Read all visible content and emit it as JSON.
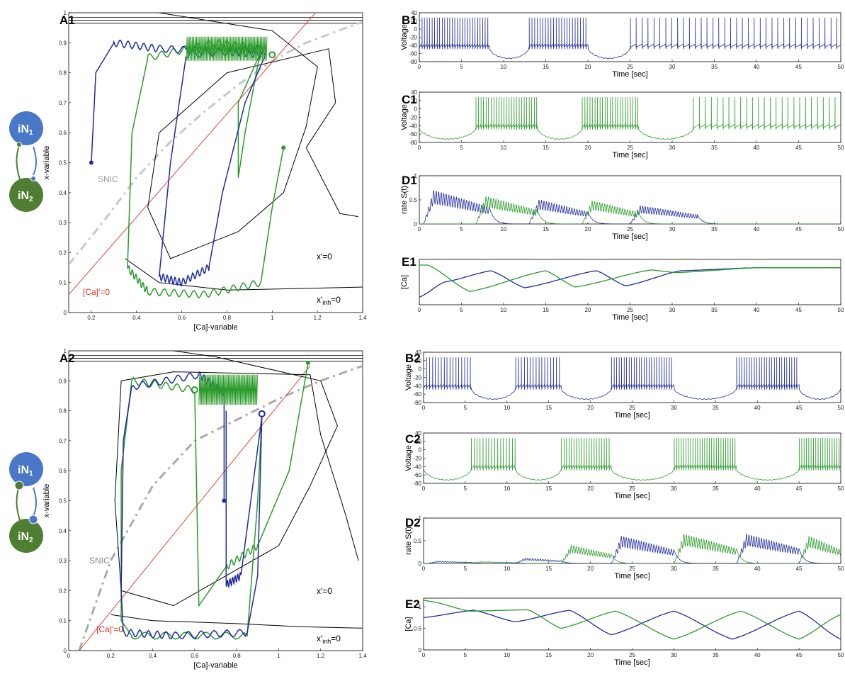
{
  "colors": {
    "iN1": "#1f2b9e",
    "iN2": "#2a9a2a",
    "iN1_node": "#4a78c8",
    "iN2_node": "#4f7d32",
    "red": "#e0301e",
    "snic": "#c8c8c8",
    "snic2": "#aaaaaa",
    "black": "#000000"
  },
  "diagrams": [
    {
      "label_n1": "iN",
      "sub_n1": "1",
      "label_n2": "iN",
      "sub_n2": "2"
    },
    {
      "label_n1": "iN",
      "sub_n1": "1",
      "label_n2": "iN",
      "sub_n2": "2"
    }
  ],
  "chart_data": [
    {
      "id": "A1",
      "type": "line",
      "panel_label": "A1",
      "xlabel": "[Ca]-variable",
      "ylabel": "x-variable",
      "xlim": [
        0.1,
        1.4
      ],
      "ylim": [
        0,
        1.0
      ],
      "xticks": [
        "0.2",
        "0.4",
        "0.6",
        "0.8",
        "1",
        "1.2",
        "1.4"
      ],
      "yticks": [
        "0",
        "0.1",
        "0.2",
        "0.3",
        "0.4",
        "0.5",
        "0.6",
        "0.7",
        "0.8",
        "0.9",
        "1"
      ],
      "annotations": [
        "SNIC",
        "x′=0",
        "x′",
        "inh",
        "=0",
        "[Ca]′=0"
      ],
      "red_nullcline": [
        [
          0.1,
          0.06
        ],
        [
          1.4,
          1.18
        ]
      ],
      "snic": [
        [
          0.1,
          0.16
        ],
        [
          0.25,
          0.3
        ],
        [
          0.4,
          0.45
        ],
        [
          0.55,
          0.57
        ],
        [
          0.7,
          0.67
        ],
        [
          0.85,
          0.76
        ],
        [
          1.0,
          0.84
        ],
        [
          1.15,
          0.9
        ],
        [
          1.4,
          0.97
        ]
      ],
      "x_nullcline": [
        [
          0.2,
          1.02
        ],
        [
          0.5,
          1.0
        ],
        [
          1.0,
          0.94
        ],
        [
          1.2,
          0.82
        ],
        [
          1.15,
          0.62
        ],
        [
          1.05,
          0.4
        ],
        [
          0.85,
          0.27
        ],
        [
          0.55,
          0.18
        ],
        [
          0.45,
          0.35
        ],
        [
          0.5,
          0.6
        ],
        [
          0.8,
          0.8
        ],
        [
          1.25,
          0.88
        ],
        [
          1.28,
          0.7
        ],
        [
          1.15,
          0.55
        ],
        [
          1.3,
          0.33
        ],
        [
          1.38,
          0.32
        ]
      ],
      "xinh_nullcline": [
        [
          0.35,
          0.18
        ],
        [
          0.5,
          0.1
        ],
        [
          0.8,
          0.075
        ],
        [
          1.1,
          0.08
        ],
        [
          1.4,
          0.085
        ]
      ],
      "top_lines": [
        0.965,
        0.975,
        0.985
      ],
      "blue_traj": [
        [
          0.2,
          0.5
        ],
        [
          0.22,
          0.8
        ],
        [
          0.3,
          0.9
        ],
        [
          0.5,
          0.88
        ],
        [
          0.8,
          0.87
        ],
        [
          0.97,
          0.86
        ],
        [
          0.88,
          0.7
        ],
        [
          0.78,
          0.4
        ],
        [
          0.72,
          0.15
        ],
        [
          0.6,
          0.1
        ],
        [
          0.5,
          0.12
        ],
        [
          0.55,
          0.5
        ],
        [
          0.62,
          0.86
        ],
        [
          0.95,
          0.88
        ]
      ],
      "green_traj": [
        [
          1.05,
          0.55
        ],
        [
          1.0,
          0.35
        ],
        [
          0.95,
          0.1
        ],
        [
          0.7,
          0.06
        ],
        [
          0.45,
          0.07
        ],
        [
          0.36,
          0.15
        ],
        [
          0.38,
          0.6
        ],
        [
          0.45,
          0.85
        ],
        [
          0.75,
          0.9
        ],
        [
          0.95,
          0.88
        ],
        [
          0.88,
          0.6
        ],
        [
          0.85,
          0.45
        ],
        [
          0.85,
          0.7
        ],
        [
          0.95,
          0.87
        ]
      ],
      "blue_start": [
        0.2,
        0.5
      ],
      "green_start": [
        1.05,
        0.55
      ],
      "fixed_point": [
        1.0,
        0.86
      ]
    },
    {
      "id": "A2",
      "type": "line",
      "panel_label": "A2",
      "xlabel": "[Ca]-variable",
      "ylabel": "x-variable",
      "xlim": [
        0,
        1.4
      ],
      "ylim": [
        0,
        1.0
      ],
      "xticks": [
        "0",
        "0.2",
        "0.4",
        "0.6",
        "0.8",
        "1",
        "1.2",
        "1.4"
      ],
      "yticks": [
        "0",
        "0.1",
        "0.2",
        "0.3",
        "0.4",
        "0.5",
        "0.6",
        "0.7",
        "0.8",
        "0.9",
        "1"
      ],
      "annotations": [
        "SNIC",
        "x′=0",
        "x′",
        "inh",
        "=0",
        "[Ca]′=0"
      ],
      "red_nullcline": [
        [
          0.05,
          0.0
        ],
        [
          1.15,
          0.95
        ]
      ],
      "snic": [
        [
          0.05,
          0.0
        ],
        [
          0.2,
          0.3
        ],
        [
          0.4,
          0.55
        ],
        [
          0.6,
          0.7
        ],
        [
          0.8,
          0.77
        ],
        [
          1.0,
          0.84
        ],
        [
          1.2,
          0.9
        ],
        [
          1.4,
          0.95
        ]
      ],
      "x_nullcline": [
        [
          0.3,
          1.02
        ],
        [
          0.7,
          0.98
        ],
        [
          1.2,
          0.9
        ],
        [
          1.28,
          0.75
        ],
        [
          1.15,
          0.55
        ],
        [
          1.0,
          0.35
        ],
        [
          0.5,
          0.15
        ],
        [
          0.25,
          0.2
        ],
        [
          0.22,
          0.5
        ],
        [
          0.25,
          0.9
        ],
        [
          0.5,
          0.93
        ],
        [
          1.15,
          0.92
        ],
        [
          1.2,
          0.72
        ],
        [
          1.32,
          0.45
        ],
        [
          1.38,
          0.3
        ]
      ],
      "xinh_nullcline": [
        [
          0.2,
          0.12
        ],
        [
          0.4,
          0.1
        ],
        [
          0.8,
          0.09
        ],
        [
          1.1,
          0.08
        ],
        [
          1.4,
          0.075
        ]
      ],
      "top_lines": [
        0.965,
        0.975,
        0.985
      ],
      "blue_traj": [
        [
          0.74,
          0.5
        ],
        [
          0.74,
          0.86
        ],
        [
          0.62,
          0.92
        ],
        [
          0.3,
          0.88
        ],
        [
          0.26,
          0.7
        ],
        [
          0.25,
          0.2
        ],
        [
          0.26,
          0.06
        ],
        [
          0.5,
          0.05
        ],
        [
          0.85,
          0.06
        ],
        [
          0.9,
          0.25
        ],
        [
          0.92,
          0.78
        ],
        [
          0.82,
          0.25
        ],
        [
          0.75,
          0.22
        ],
        [
          0.75,
          0.8
        ]
      ],
      "green_traj": [
        [
          1.14,
          0.96
        ],
        [
          1.05,
          0.6
        ],
        [
          0.9,
          0.35
        ],
        [
          0.75,
          0.28
        ],
        [
          0.62,
          0.15
        ],
        [
          0.6,
          0.87
        ],
        [
          0.3,
          0.9
        ],
        [
          0.25,
          0.6
        ],
        [
          0.25,
          0.1
        ],
        [
          0.3,
          0.05
        ],
        [
          0.85,
          0.05
        ],
        [
          0.9,
          0.5
        ],
        [
          0.92,
          0.78
        ]
      ],
      "blue_start": [
        0.74,
        0.5
      ],
      "green_start": [
        1.14,
        0.96
      ],
      "fixed_point": [
        0.92,
        0.79
      ],
      "green_fixed": [
        0.6,
        0.87
      ]
    },
    {
      "id": "B1",
      "panel_label": "B1",
      "type": "line",
      "xlabel": "Time [sec]",
      "ylabel": "Voltage",
      "xlim": [
        0,
        50
      ],
      "ylim": [
        -80,
        40
      ],
      "xticks": [
        "0",
        "5",
        "10",
        "15",
        "20",
        "25",
        "30",
        "35",
        "40",
        "45",
        "50"
      ],
      "yticks": [
        "-80",
        "-60",
        "-40",
        "-20",
        "0",
        "20",
        "40"
      ],
      "series": [
        {
          "color": "iN1",
          "kind": "voltage",
          "bursts": [
            [
              0,
              8.3
            ],
            [
              13,
              20
            ],
            [
              25,
              50
            ]
          ],
          "period": [
            0.3,
            0.32,
            0.7
          ],
          "rest": -45,
          "spike": 28,
          "hyper": -72
        }
      ]
    },
    {
      "id": "C1",
      "panel_label": "C1",
      "type": "line",
      "xlabel": "Time [sec]",
      "ylabel": "Voltage",
      "xlim": [
        0,
        50
      ],
      "ylim": [
        -80,
        40
      ],
      "xticks": [
        "0",
        "5",
        "10",
        "15",
        "20",
        "25",
        "30",
        "35",
        "40",
        "45",
        "50"
      ],
      "yticks": [
        "-80",
        "-60",
        "-40",
        "-20",
        "0",
        "20",
        "40"
      ],
      "series": [
        {
          "color": "iN2",
          "kind": "voltage",
          "bursts": [
            [
              6.7,
              14
            ],
            [
              19.3,
              26
            ],
            [
              32.5,
              50
            ]
          ],
          "period": [
            0.3,
            0.3,
            0.7
          ],
          "rest": -45,
          "spike": 28,
          "hyper": -72
        }
      ]
    },
    {
      "id": "D1",
      "panel_label": "D1",
      "type": "line",
      "xlabel": "Time [sec]",
      "ylabel": "rate S(t)",
      "xlim": [
        0,
        50
      ],
      "ylim": [
        0,
        1
      ],
      "xticks": [
        "0",
        "5",
        "10",
        "15",
        "20",
        "25",
        "30",
        "35",
        "40",
        "45",
        "50"
      ],
      "yticks": [
        "0",
        "0.5",
        "1"
      ],
      "series": [
        {
          "color": "iN1",
          "kind": "rate",
          "bumps": [
            [
              0.5,
              8.3,
              0.7
            ],
            [
              13,
              20,
              0.5
            ],
            [
              25,
              33,
              0.38
            ]
          ]
        },
        {
          "color": "iN2",
          "kind": "rate",
          "bumps": [
            [
              6.7,
              14,
              0.57
            ],
            [
              19.3,
              26,
              0.48
            ]
          ]
        }
      ]
    },
    {
      "id": "E1",
      "panel_label": "E1",
      "type": "line",
      "xlabel": "Time [sec]",
      "ylabel": "[Ca]",
      "xlim": [
        0,
        50
      ],
      "ylim": [
        0,
        1.2
      ],
      "xticks": [
        "0",
        "5",
        "10",
        "15",
        "20",
        "25",
        "30",
        "35",
        "40",
        "45",
        "50"
      ],
      "yticks": [],
      "series": [
        {
          "color": "iN1",
          "kind": "ca",
          "pts": [
            [
              0,
              0.2
            ],
            [
              3,
              0.6
            ],
            [
              8.5,
              0.9
            ],
            [
              12.5,
              0.45
            ],
            [
              21,
              0.9
            ],
            [
              24.5,
              0.5
            ],
            [
              31,
              0.9
            ],
            [
              40,
              0.98
            ],
            [
              50,
              0.98
            ]
          ]
        },
        {
          "color": "iN2",
          "kind": "ca",
          "pts": [
            [
              0,
              1.05
            ],
            [
              1,
              1.05
            ],
            [
              6,
              0.35
            ],
            [
              15,
              0.9
            ],
            [
              18.5,
              0.47
            ],
            [
              27.5,
              0.92
            ],
            [
              30.5,
              0.85
            ],
            [
              40,
              0.98
            ],
            [
              50,
              0.98
            ]
          ]
        }
      ]
    },
    {
      "id": "B2",
      "panel_label": "B2",
      "type": "line",
      "xlabel": "Time [sec]",
      "ylabel": "Voltage",
      "xlim": [
        0,
        50
      ],
      "ylim": [
        -80,
        40
      ],
      "xticks": [
        "0",
        "5",
        "10",
        "15",
        "20",
        "25",
        "30",
        "35",
        "40",
        "45",
        "50"
      ],
      "yticks": [
        "-80",
        "-60",
        "-40",
        "-20",
        "0",
        "20",
        "40"
      ],
      "series": [
        {
          "color": "iN1",
          "kind": "voltage",
          "bursts": [
            [
              0,
              5.7
            ],
            [
              11,
              16.5
            ],
            [
              22.5,
              30
            ],
            [
              37.5,
              45
            ]
          ],
          "period": [
            0.35,
            0.35,
            0.3,
            0.3
          ],
          "rest": -45,
          "spike": 28,
          "hyper": -72
        }
      ]
    },
    {
      "id": "C2",
      "panel_label": "C2",
      "type": "line",
      "xlabel": "Time [sec]",
      "ylabel": "Voltage",
      "xlim": [
        0,
        50
      ],
      "ylim": [
        -80,
        40
      ],
      "xticks": [
        "0",
        "5",
        "10",
        "15",
        "20",
        "25",
        "30",
        "35",
        "40",
        "45",
        "50"
      ],
      "yticks": [
        "-80",
        "-60",
        "-40",
        "-20",
        "0",
        "20",
        "40"
      ],
      "series": [
        {
          "color": "iN2",
          "kind": "voltage",
          "bursts": [
            [
              5.7,
              11
            ],
            [
              16.5,
              22.5
            ],
            [
              30,
              37.5
            ],
            [
              45,
              50
            ]
          ],
          "period": [
            0.35,
            0.3,
            0.28,
            0.28
          ],
          "rest": -45,
          "spike": 28,
          "hyper": -72
        }
      ]
    },
    {
      "id": "D2",
      "panel_label": "D2",
      "type": "line",
      "xlabel": "Time [sec]",
      "ylabel": "rate S(t)",
      "xlim": [
        0,
        50
      ],
      "ylim": [
        0,
        1
      ],
      "xticks": [
        "0",
        "5",
        "10",
        "15",
        "20",
        "25",
        "30",
        "35",
        "40",
        "45",
        "50"
      ],
      "yticks": [
        "0",
        "0.5",
        "1"
      ],
      "series": [
        {
          "color": "iN1",
          "kind": "rate",
          "bumps": [
            [
              0.5,
              5.7,
              0.05
            ],
            [
              11,
              16.5,
              0.12
            ],
            [
              22.5,
              30,
              0.6
            ],
            [
              37.5,
              45,
              0.65
            ]
          ]
        },
        {
          "color": "iN2",
          "kind": "rate",
          "bumps": [
            [
              5.7,
              11,
              0.04
            ],
            [
              16.5,
              22.5,
              0.4
            ],
            [
              30,
              37.5,
              0.65
            ],
            [
              45,
              50,
              0.6
            ]
          ]
        }
      ]
    },
    {
      "id": "E2",
      "panel_label": "E2",
      "type": "line",
      "xlabel": "Time [sec]",
      "ylabel": "[Ca]",
      "xlim": [
        0,
        50
      ],
      "ylim": [
        0,
        1.2
      ],
      "xticks": [
        "0",
        "5",
        "10",
        "15",
        "20",
        "25",
        "30",
        "35",
        "40",
        "45",
        "50"
      ],
      "yticks": [
        "0",
        "0.5",
        "1"
      ],
      "series": [
        {
          "color": "iN1",
          "kind": "ca",
          "pts": [
            [
              0,
              0.75
            ],
            [
              6,
              0.92
            ],
            [
              11,
              0.65
            ],
            [
              17.5,
              0.92
            ],
            [
              22.5,
              0.35
            ],
            [
              30,
              0.9
            ],
            [
              37,
              0.25
            ],
            [
              45,
              0.9
            ],
            [
              50,
              0.25
            ]
          ]
        },
        {
          "color": "iN2",
          "kind": "ca",
          "pts": [
            [
              0,
              1.15
            ],
            [
              1,
              1.12
            ],
            [
              5.5,
              0.9
            ],
            [
              12.5,
              0.93
            ],
            [
              16.5,
              0.5
            ],
            [
              23,
              0.9
            ],
            [
              30,
              0.25
            ],
            [
              38,
              0.9
            ],
            [
              45,
              0.25
            ],
            [
              50,
              0.82
            ]
          ]
        }
      ]
    }
  ]
}
